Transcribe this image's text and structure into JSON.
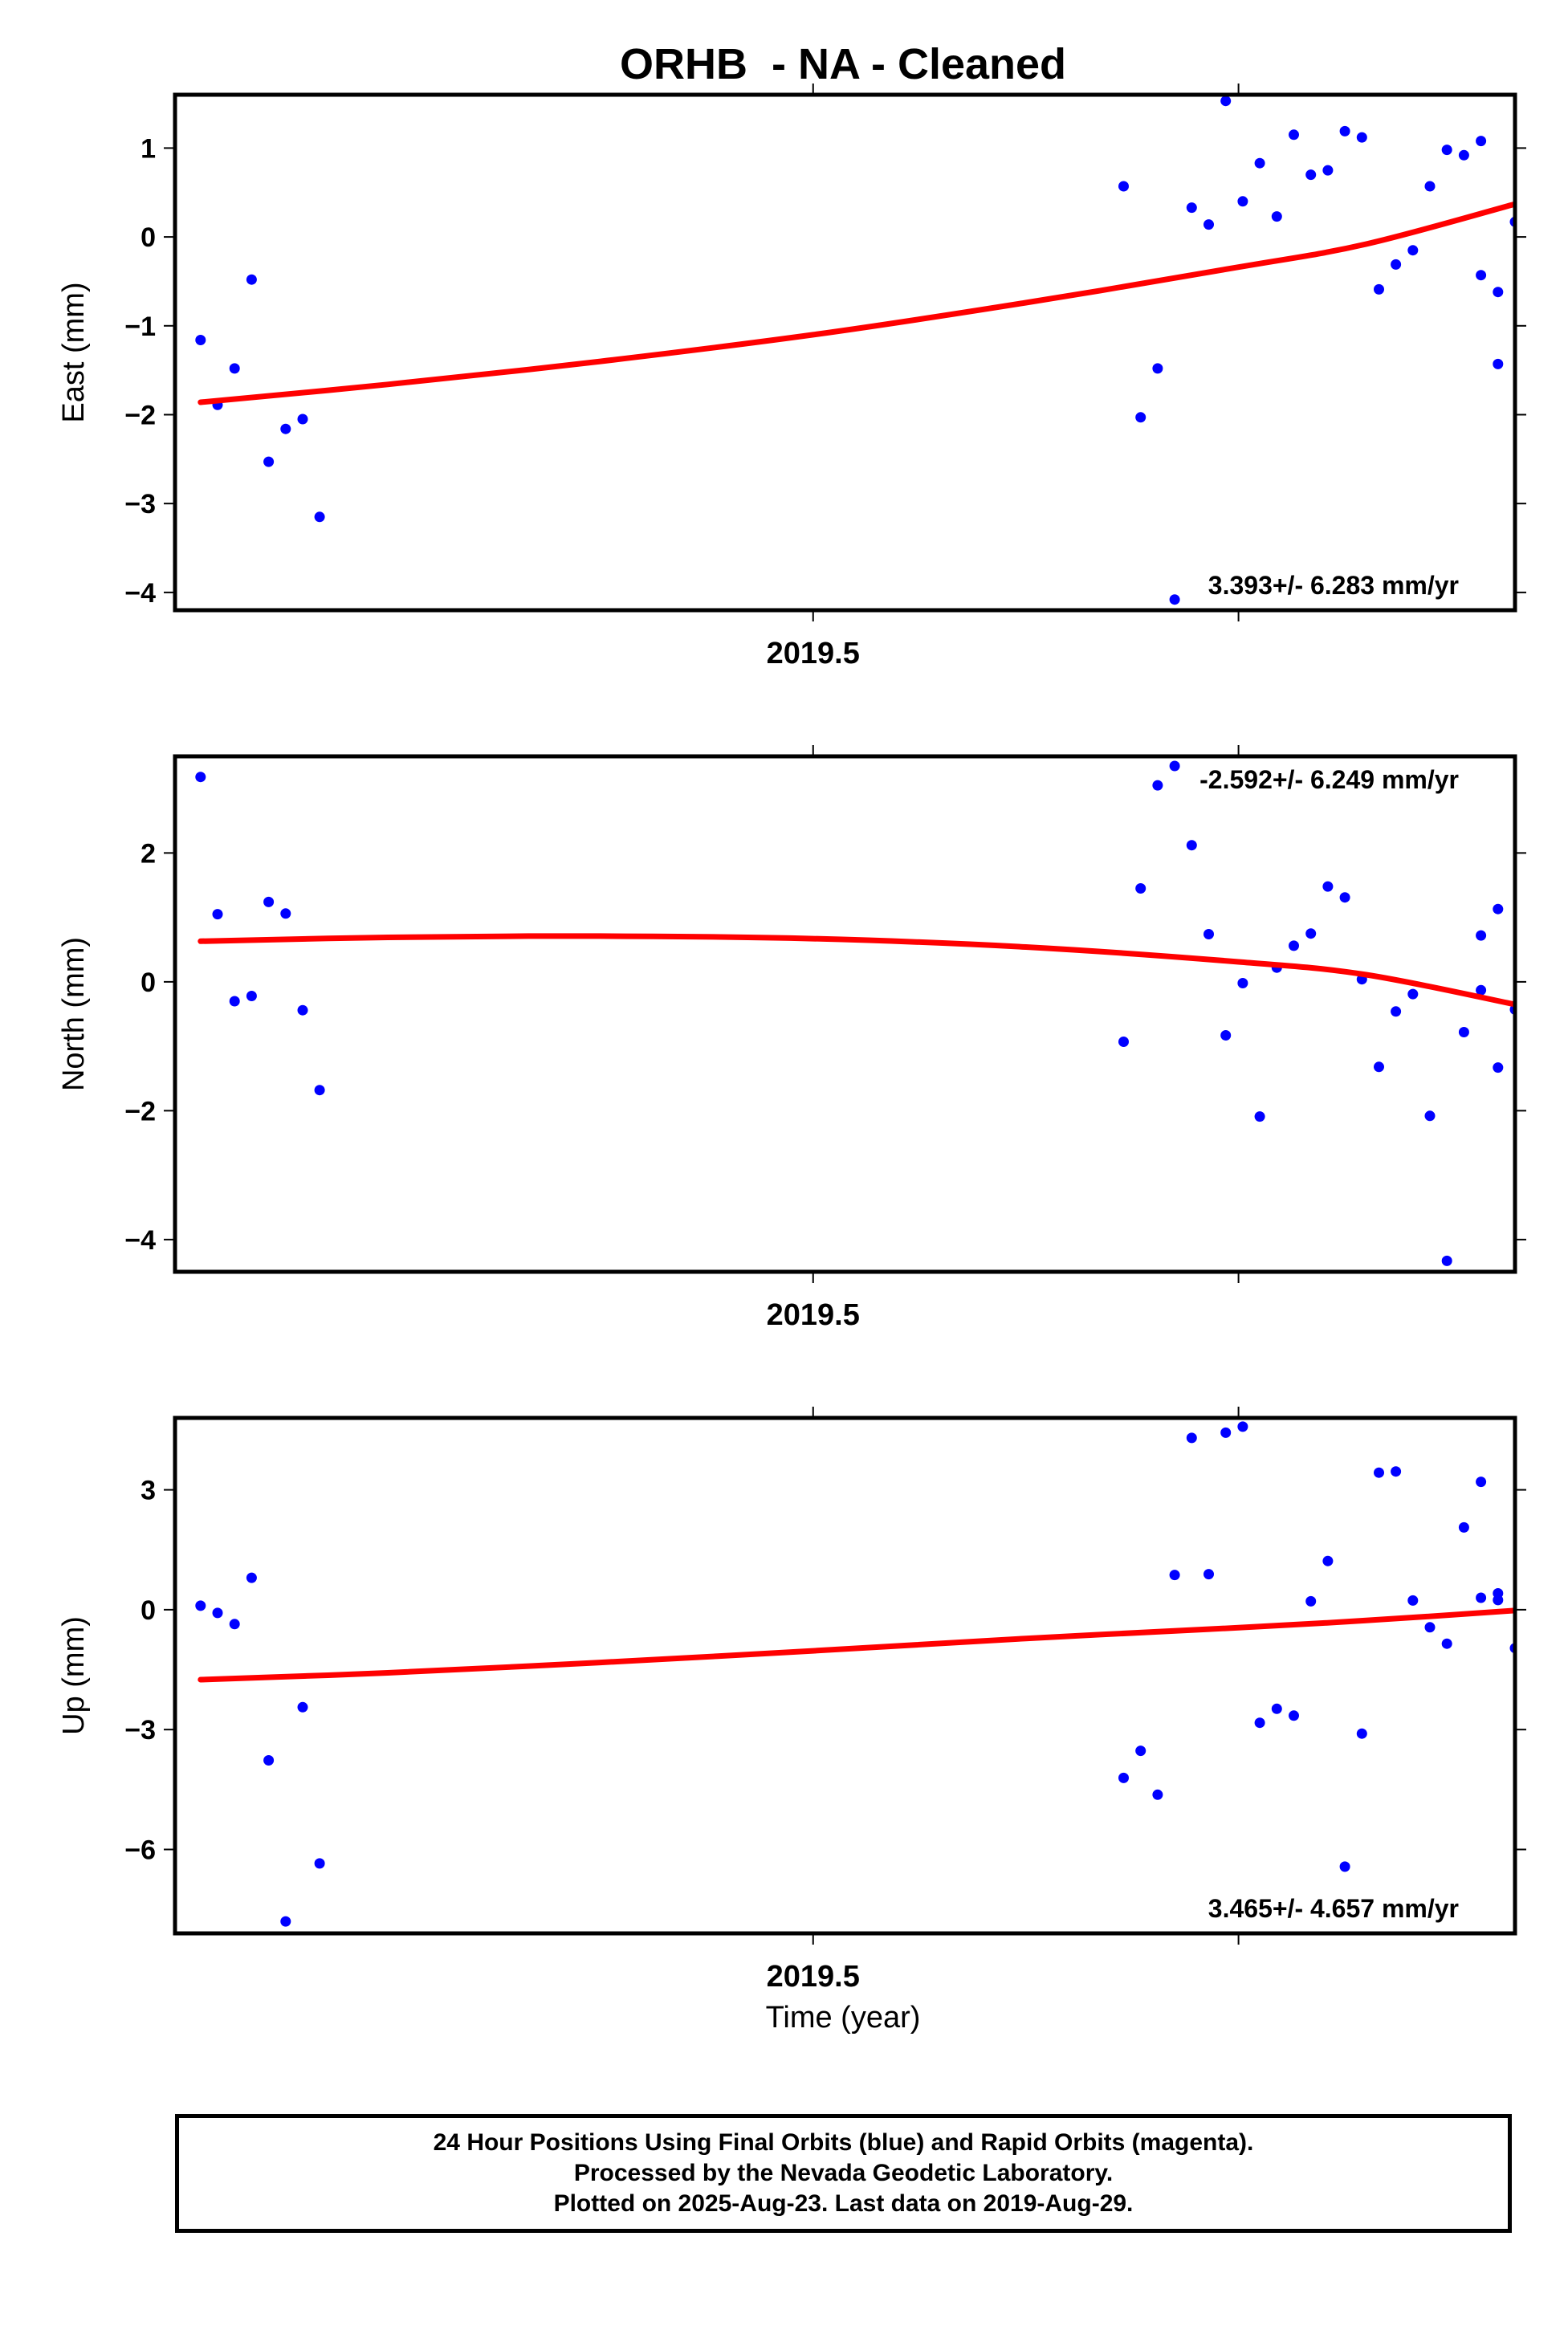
{
  "title": "ORHB  - NA - Cleaned",
  "x_axis_label": "Time (year)",
  "footer": {
    "line1": "24 Hour Positions Using Final Orbits (blue) and Rapid Orbits (magenta).",
    "line2": "Processed by the Nevada Geodetic Laboratory.",
    "line3": "Plotted on 2025-Aug-23. Last data on 2019-Aug-29."
  },
  "colors": {
    "points": "#0000ff",
    "fit": "#ff0000",
    "frame": "#000000"
  },
  "chart_data": [
    {
      "type": "scatter",
      "ylabel": "East (mm)",
      "xlim": [
        2019.35,
        2019.665
      ],
      "ylim": [
        -4.2,
        1.6
      ],
      "yticks": [
        1,
        0,
        -1,
        -2,
        -3,
        -4
      ],
      "ytick_labels": [
        "1",
        "0",
        "−1",
        "−2",
        "−3",
        "−4"
      ],
      "xtick_labels": [
        {
          "x": 2019.5,
          "label": "2019.5"
        }
      ],
      "rate_label": "3.393+/- 6.283 mm/yr",
      "rate_position": "bottom-right",
      "points": [
        [
          2019.356,
          -1.16
        ],
        [
          2019.36,
          -1.89
        ],
        [
          2019.364,
          -1.48
        ],
        [
          2019.368,
          -0.48
        ],
        [
          2019.372,
          -2.53
        ],
        [
          2019.376,
          -2.16
        ],
        [
          2019.38,
          -2.05
        ],
        [
          2019.384,
          -3.15
        ],
        [
          2019.573,
          0.57
        ],
        [
          2019.577,
          -2.03
        ],
        [
          2019.581,
          -1.48
        ],
        [
          2019.585,
          -4.08
        ],
        [
          2019.589,
          0.33
        ],
        [
          2019.593,
          0.14
        ],
        [
          2019.597,
          1.53
        ],
        [
          2019.601,
          0.4
        ],
        [
          2019.605,
          0.83
        ],
        [
          2019.609,
          0.23
        ],
        [
          2019.613,
          1.15
        ],
        [
          2019.617,
          0.7
        ],
        [
          2019.621,
          0.75
        ],
        [
          2019.625,
          1.19
        ],
        [
          2019.629,
          1.12
        ],
        [
          2019.633,
          -0.59
        ],
        [
          2019.637,
          -0.31
        ],
        [
          2019.641,
          -0.15
        ],
        [
          2019.645,
          0.57
        ],
        [
          2019.649,
          0.98
        ],
        [
          2019.653,
          0.92
        ],
        [
          2019.657,
          1.08
        ],
        [
          2019.661,
          -1.43
        ],
        [
          2019.657,
          -0.43
        ],
        [
          2019.661,
          -0.62
        ],
        [
          2019.665,
          0.17
        ]
      ],
      "fit": [
        [
          2019.356,
          -1.86
        ],
        [
          2019.4,
          -1.66
        ],
        [
          2019.45,
          -1.4
        ],
        [
          2019.5,
          -1.1
        ],
        [
          2019.55,
          -0.74
        ],
        [
          2019.6,
          -0.34
        ],
        [
          2019.63,
          -0.08
        ],
        [
          2019.665,
          0.37
        ]
      ]
    },
    {
      "type": "scatter",
      "ylabel": "North (mm)",
      "xlim": [
        2019.35,
        2019.665
      ],
      "ylim": [
        -4.5,
        3.5
      ],
      "yticks": [
        2,
        0,
        -2,
        -4
      ],
      "ytick_labels": [
        "2",
        "0",
        "−2",
        "−4"
      ],
      "xtick_labels": [
        {
          "x": 2019.5,
          "label": "2019.5"
        }
      ],
      "rate_label": "-2.592+/- 6.249 mm/yr",
      "rate_position": "top-right",
      "points": [
        [
          2019.356,
          3.18
        ],
        [
          2019.36,
          1.05
        ],
        [
          2019.364,
          -0.3
        ],
        [
          2019.368,
          -0.22
        ],
        [
          2019.372,
          1.24
        ],
        [
          2019.376,
          1.06
        ],
        [
          2019.38,
          -0.44
        ],
        [
          2019.384,
          -1.68
        ],
        [
          2019.573,
          -0.93
        ],
        [
          2019.577,
          1.45
        ],
        [
          2019.581,
          3.05
        ],
        [
          2019.585,
          3.35
        ],
        [
          2019.589,
          2.12
        ],
        [
          2019.593,
          0.74
        ],
        [
          2019.597,
          -0.83
        ],
        [
          2019.601,
          -0.02
        ],
        [
          2019.605,
          -2.09
        ],
        [
          2019.609,
          0.22
        ],
        [
          2019.613,
          0.56
        ],
        [
          2019.617,
          0.75
        ],
        [
          2019.621,
          1.48
        ],
        [
          2019.625,
          1.31
        ],
        [
          2019.629,
          0.04
        ],
        [
          2019.633,
          -1.32
        ],
        [
          2019.637,
          -0.46
        ],
        [
          2019.641,
          -0.19
        ],
        [
          2019.645,
          -2.08
        ],
        [
          2019.649,
          -4.33
        ],
        [
          2019.653,
          -0.78
        ],
        [
          2019.657,
          -0.13
        ],
        [
          2019.661,
          -1.33
        ],
        [
          2019.657,
          0.72
        ],
        [
          2019.661,
          1.13
        ],
        [
          2019.665,
          -0.43
        ]
      ],
      "fit": [
        [
          2019.356,
          0.63
        ],
        [
          2019.4,
          0.69
        ],
        [
          2019.45,
          0.71
        ],
        [
          2019.5,
          0.67
        ],
        [
          2019.55,
          0.54
        ],
        [
          2019.6,
          0.31
        ],
        [
          2019.63,
          0.11
        ],
        [
          2019.665,
          -0.35
        ]
      ]
    },
    {
      "type": "scatter",
      "ylabel": "Up (mm)",
      "xlim": [
        2019.35,
        2019.665
      ],
      "ylim": [
        -8.1,
        4.8
      ],
      "yticks": [
        3,
        0,
        -3,
        -6
      ],
      "ytick_labels": [
        "3",
        "0",
        "−3",
        "−6"
      ],
      "xtick_labels": [
        {
          "x": 2019.5,
          "label": "2019.5"
        }
      ],
      "rate_label": "3.465+/- 4.657 mm/yr",
      "rate_position": "bottom-right",
      "points": [
        [
          2019.356,
          0.1
        ],
        [
          2019.36,
          -0.08
        ],
        [
          2019.364,
          -0.36
        ],
        [
          2019.368,
          0.8
        ],
        [
          2019.372,
          -3.77
        ],
        [
          2019.376,
          -7.8
        ],
        [
          2019.38,
          -2.44
        ],
        [
          2019.384,
          -6.35
        ],
        [
          2019.573,
          -4.21
        ],
        [
          2019.577,
          -3.53
        ],
        [
          2019.581,
          -4.63
        ],
        [
          2019.585,
          0.87
        ],
        [
          2019.589,
          4.3
        ],
        [
          2019.593,
          0.89
        ],
        [
          2019.597,
          4.43
        ],
        [
          2019.601,
          4.58
        ],
        [
          2019.605,
          -2.83
        ],
        [
          2019.609,
          -2.48
        ],
        [
          2019.613,
          -2.65
        ],
        [
          2019.617,
          0.21
        ],
        [
          2019.621,
          1.22
        ],
        [
          2019.625,
          -6.43
        ],
        [
          2019.629,
          -3.1
        ],
        [
          2019.633,
          3.43
        ],
        [
          2019.637,
          3.46
        ],
        [
          2019.641,
          0.23
        ],
        [
          2019.645,
          -0.44
        ],
        [
          2019.649,
          -0.85
        ],
        [
          2019.653,
          2.06
        ],
        [
          2019.657,
          3.2
        ],
        [
          2019.661,
          0.24
        ],
        [
          2019.657,
          0.3
        ],
        [
          2019.661,
          0.41
        ],
        [
          2019.665,
          -0.96
        ]
      ],
      "fit": [
        [
          2019.356,
          -1.75
        ],
        [
          2019.4,
          -1.58
        ],
        [
          2019.45,
          -1.32
        ],
        [
          2019.5,
          -1.03
        ],
        [
          2019.55,
          -0.72
        ],
        [
          2019.6,
          -0.45
        ],
        [
          2019.63,
          -0.27
        ],
        [
          2019.665,
          -0.02
        ]
      ]
    }
  ]
}
